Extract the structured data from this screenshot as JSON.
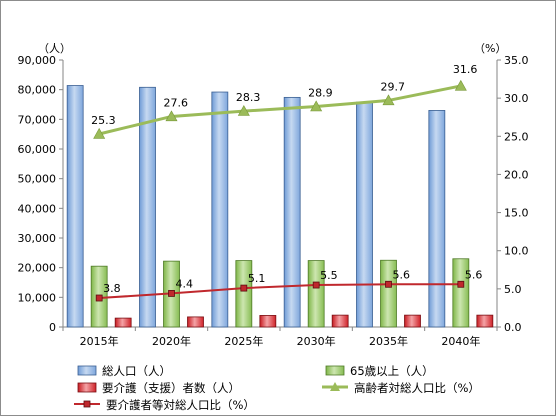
{
  "chart_data": {
    "type": "bar",
    "categories": [
      "2015年",
      "2020年",
      "2025年",
      "2030年",
      "2035年",
      "2040年"
    ],
    "ylim": [
      0,
      90000
    ],
    "y2lim": [
      0,
      35
    ],
    "y_ticks": [
      "0",
      "10,000",
      "20,000",
      "30,000",
      "40,000",
      "50,000",
      "60,000",
      "70,000",
      "80,000",
      "90,000"
    ],
    "y2_ticks": [
      "0.0",
      "5.0",
      "10.0",
      "15.0",
      "20.0",
      "25.0",
      "30.0",
      "35.0"
    ],
    "ylabel": "（人）",
    "y2label": "（%）",
    "grid": false,
    "legend_position": "bottom",
    "series": [
      {
        "name": "総人口（人）",
        "type": "bar",
        "axis": "left",
        "color": "#8eb4e3",
        "values": [
          81400,
          80800,
          79200,
          77400,
          75800,
          73000
        ]
      },
      {
        "name": "65歳以上（人）",
        "type": "bar",
        "axis": "left",
        "color": "#9bcd6a",
        "values": [
          20500,
          22200,
          22400,
          22400,
          22500,
          23000
        ]
      },
      {
        "name": "要介護（支援）者数（人）",
        "type": "bar",
        "axis": "left",
        "color": "#e8242a",
        "values": [
          3000,
          3400,
          3900,
          4000,
          4000,
          4000
        ]
      },
      {
        "name": "高齢者対総人口比（%）",
        "type": "line",
        "axis": "right",
        "color": "#9bbb59",
        "marker": "triangle",
        "values": [
          25.3,
          27.6,
          28.3,
          28.9,
          29.7,
          31.6
        ],
        "labels": [
          "25.3",
          "27.6",
          "28.3",
          "28.9",
          "29.7",
          "31.6"
        ]
      },
      {
        "name": "要介護者等対総人口比（%）",
        "type": "line",
        "axis": "right",
        "color": "#c0282d",
        "marker": "square",
        "values": [
          3.8,
          4.4,
          5.1,
          5.5,
          5.6,
          5.6
        ],
        "labels": [
          "3.8",
          "4.4",
          "5.1",
          "5.5",
          "5.6",
          "5.6"
        ]
      }
    ]
  }
}
